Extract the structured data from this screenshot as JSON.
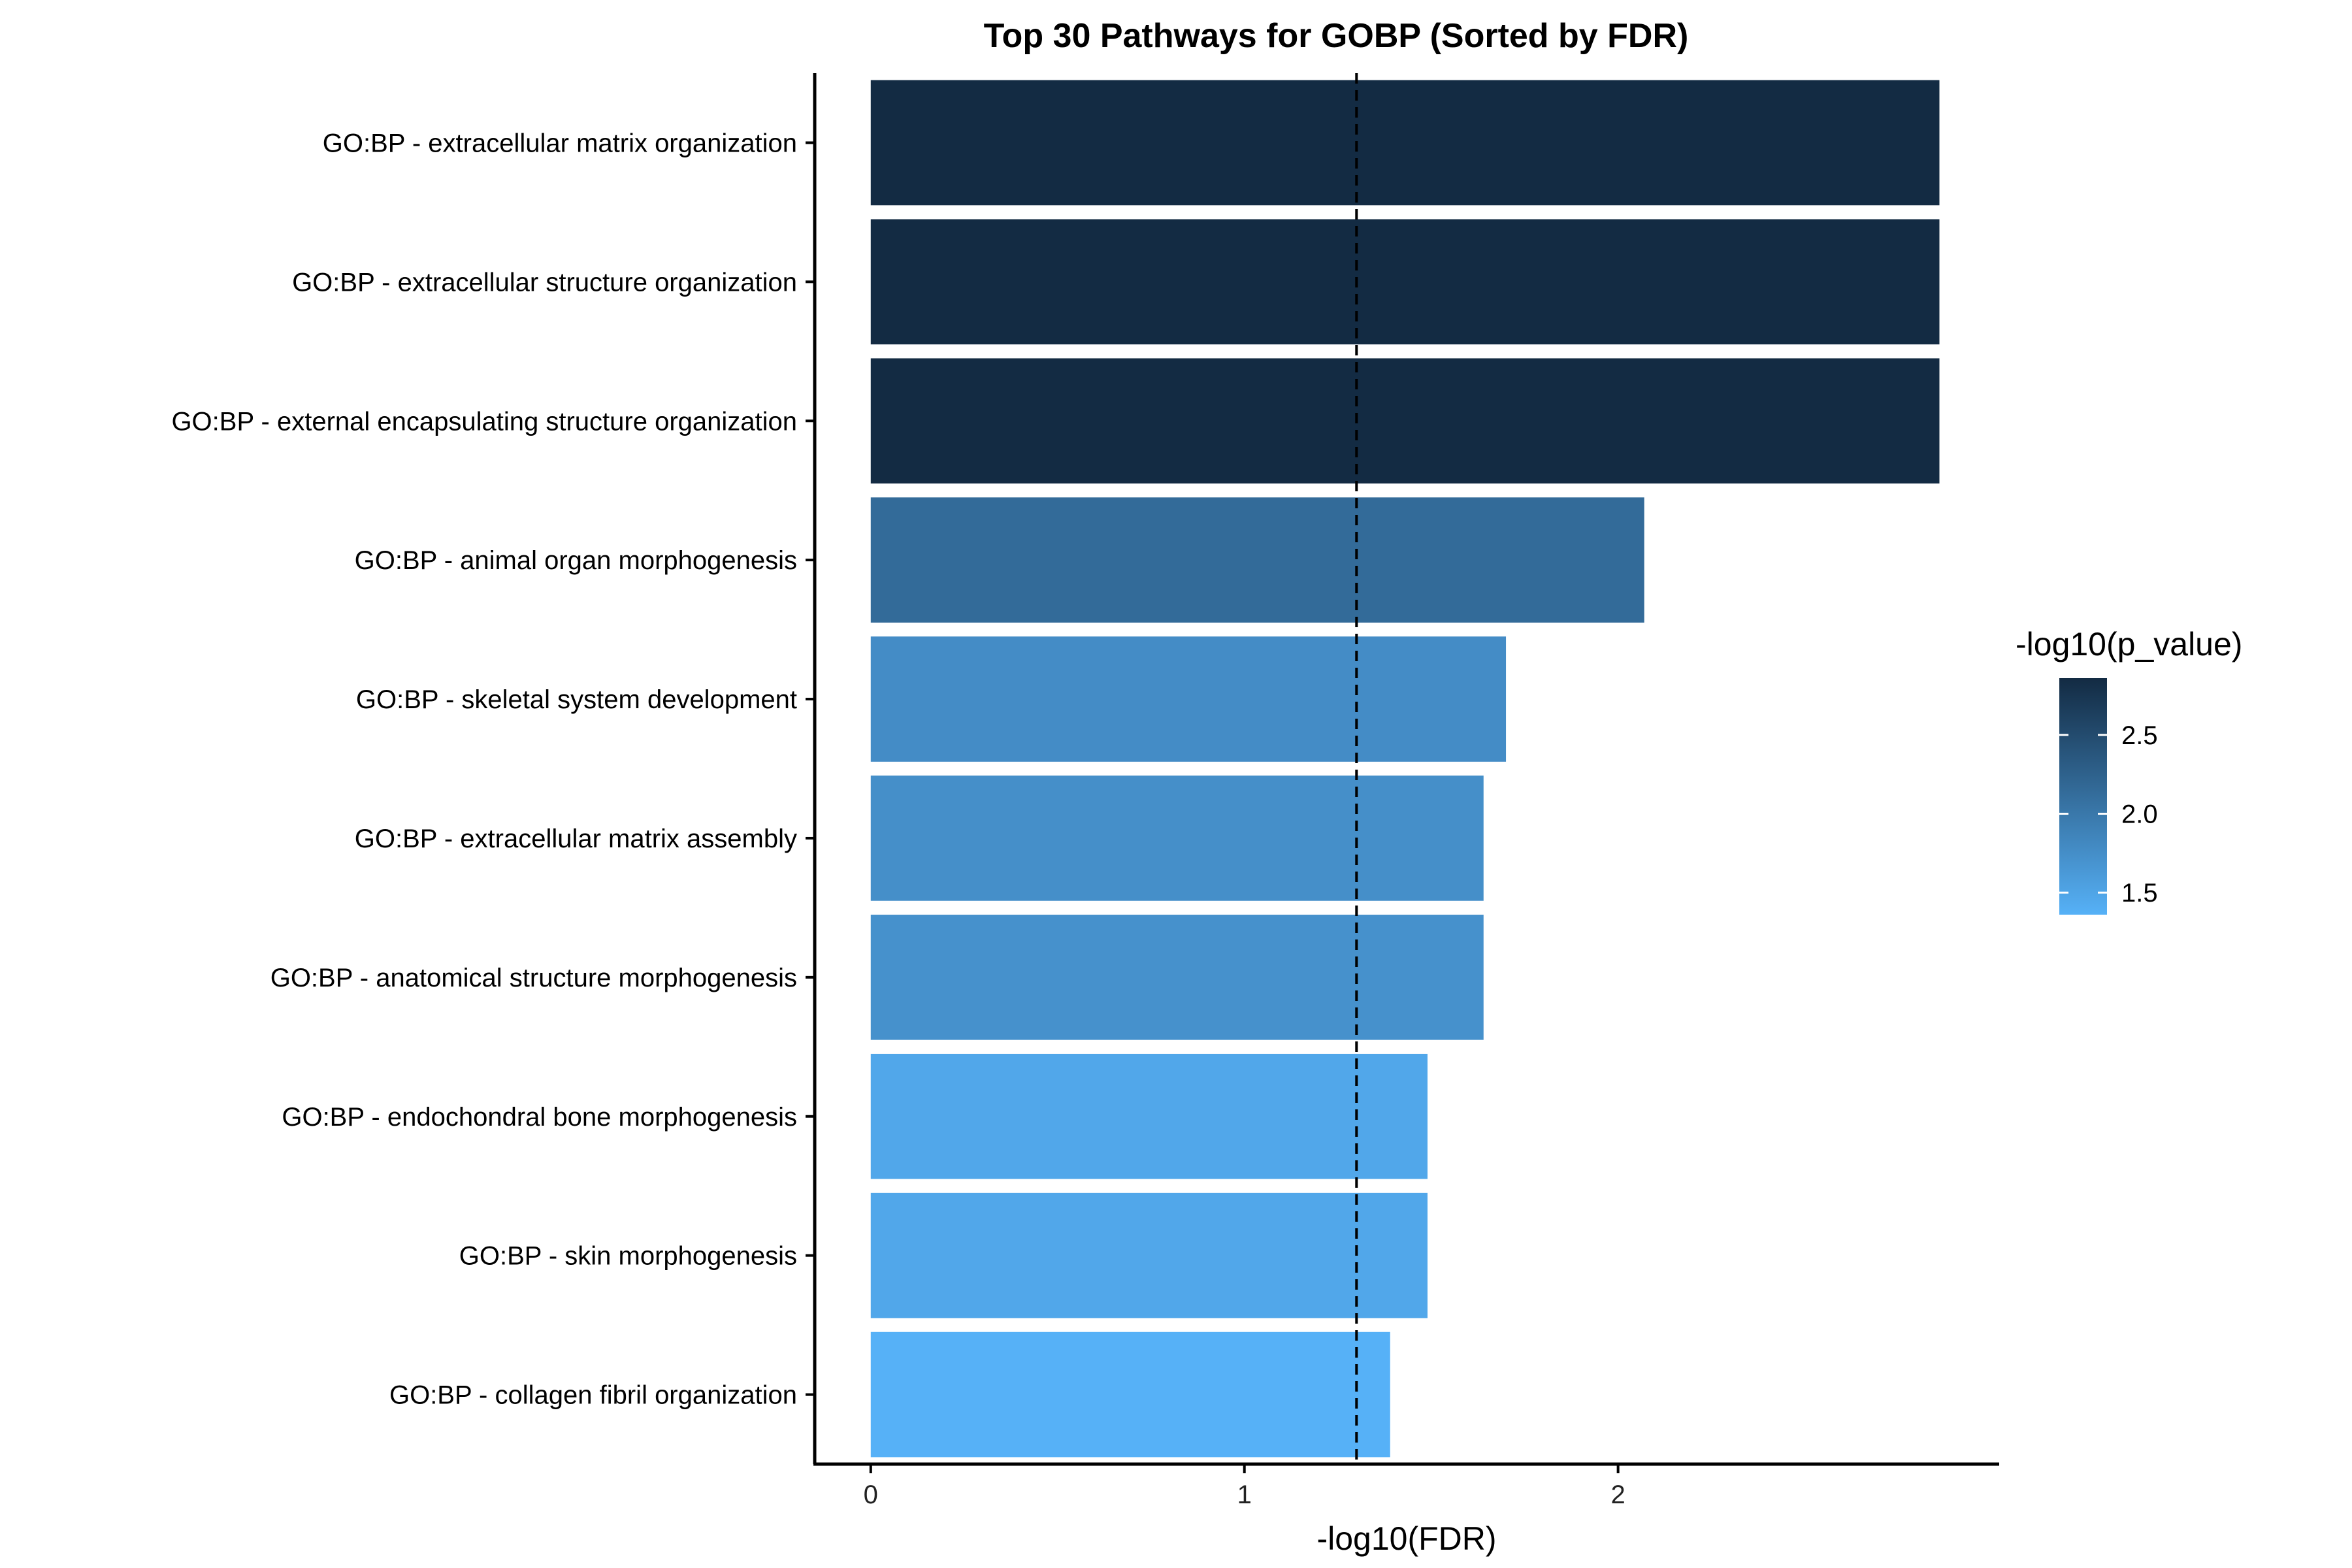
{
  "chart_data": {
    "type": "bar",
    "orientation": "horizontal",
    "title": "Top 30 Pathways for GOBP (Sorted by FDR)",
    "xlabel": "-log10(FDR)",
    "ylabel": "",
    "xlim": [
      -0.15,
      3.02
    ],
    "xticks": [
      0,
      1,
      2
    ],
    "reference_line": {
      "x": 1.3,
      "style": "dashed"
    },
    "categories": [
      "GO:BP - extracellular matrix organization",
      "GO:BP - extracellular structure organization",
      "GO:BP - external encapsulating structure organization",
      "GO:BP - animal organ morphogenesis",
      "GO:BP - skeletal system development",
      "GO:BP - extracellular matrix assembly",
      "GO:BP - anatomical structure morphogenesis",
      "GO:BP - endochondral bone morphogenesis",
      "GO:BP - skin morphogenesis",
      "GO:BP - collagen fibril organization"
    ],
    "values": [
      2.86,
      2.86,
      2.86,
      2.07,
      1.7,
      1.64,
      1.64,
      1.49,
      1.49,
      1.39
    ],
    "color_values": [
      2.86,
      2.86,
      2.86,
      2.14,
      1.77,
      1.74,
      1.72,
      1.47,
      1.47,
      1.36
    ],
    "color_scale": {
      "title": "-log10(p_value)",
      "min": 1.36,
      "max": 2.86,
      "low_color": "#56B1F7",
      "high_color": "#132B43",
      "ticks": [
        1.5,
        2.0,
        2.5
      ],
      "tick_labels": [
        "1.5",
        "2.0",
        "2.5"
      ]
    },
    "grid": false,
    "legend_position": "right"
  }
}
